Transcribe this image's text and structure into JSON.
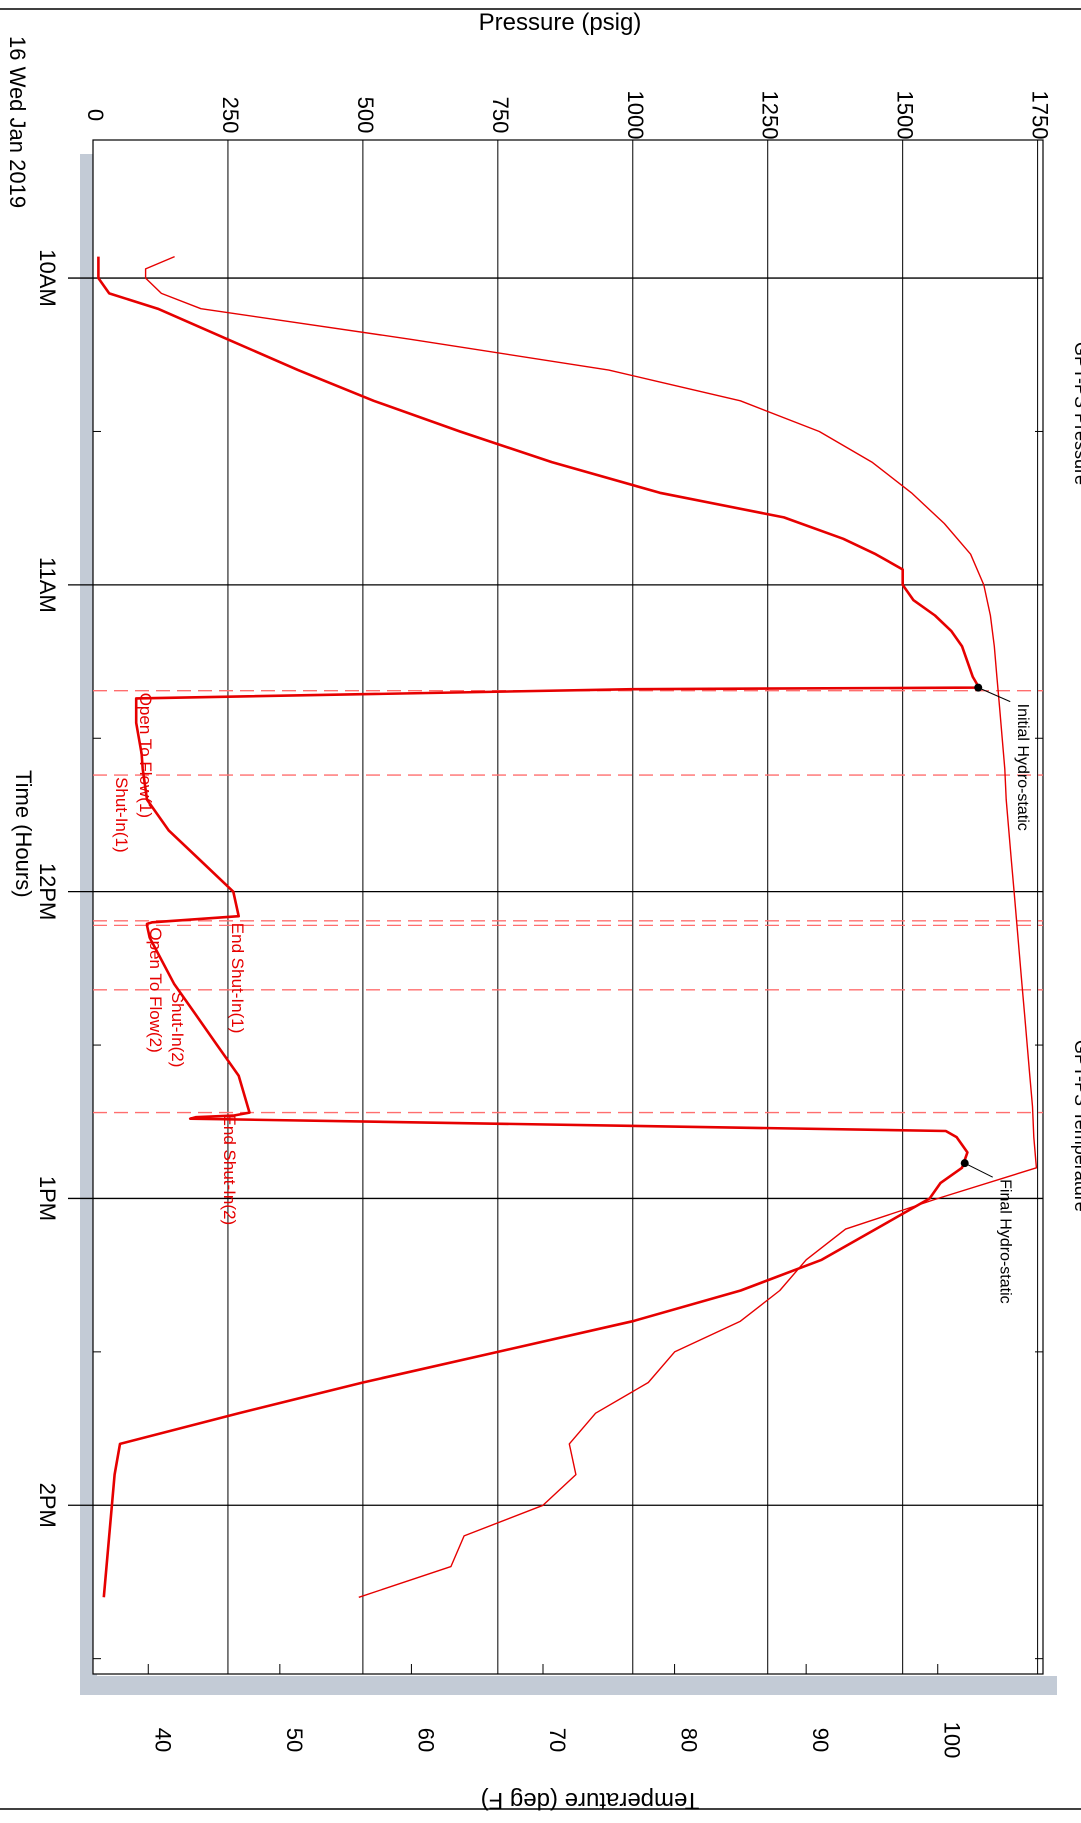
{
  "chart_data": {
    "type": "line",
    "orientation": "rotated-90-clockwise",
    "date_label": "16 Wed Jan 2019",
    "xlabel": "Time (Hours)",
    "ylabel_left": "Pressure (psig)",
    "ylabel_right": "Temperature (deg F)",
    "x_ticks": [
      "10AM",
      "11AM",
      "12PM",
      "1PM",
      "2PM"
    ],
    "x_tick_hours": [
      10,
      11,
      12,
      13,
      14
    ],
    "xlim_hours": [
      9.55,
      14.55
    ],
    "pressure_ticks": [
      "0",
      "250",
      "500",
      "750",
      "1000",
      "1250",
      "1500",
      "1750"
    ],
    "pressure_tick_values": [
      0,
      250,
      500,
      750,
      1000,
      1250,
      1500,
      1750
    ],
    "pressure_lim": [
      0,
      1760
    ],
    "temperature_ticks": [
      "40",
      "50",
      "60",
      "70",
      "80",
      "90",
      "100"
    ],
    "temperature_tick_values": [
      40,
      50,
      60,
      70,
      80,
      90,
      100
    ],
    "temperature_lim": [
      35.8,
      108
    ],
    "grid": true,
    "legend": {
      "placement": "top-right",
      "entries": [
        {
          "label": "GPT-PS Pressure",
          "color": "#e60000"
        },
        {
          "label": "GPT-PS Temperature",
          "color": "#e60000"
        }
      ]
    },
    "colors": {
      "series": "#e60000",
      "event_line": "#ff6e6e",
      "band": "#c3cbd6",
      "grid": "#000000"
    },
    "series": [
      {
        "name": "GPT-PS Pressure",
        "axis": "pressure",
        "x": [
          9.93,
          10.0,
          10.05,
          10.1,
          10.2,
          10.3,
          10.4,
          10.5,
          10.6,
          10.7,
          10.78,
          10.85,
          10.9,
          10.95,
          11.0,
          11.05,
          11.1,
          11.15,
          11.2,
          11.25,
          11.3,
          11.33,
          11.335,
          11.34,
          11.37,
          11.4,
          11.45,
          11.5,
          11.55,
          11.6,
          11.7,
          11.8,
          11.9,
          12.0,
          12.08,
          12.1,
          12.105,
          12.11,
          12.15,
          12.2,
          12.3,
          12.4,
          12.5,
          12.6,
          12.72,
          12.73,
          12.735,
          12.74,
          12.78,
          12.8,
          12.85,
          12.9,
          12.95,
          13.0,
          13.05,
          13.1,
          13.2,
          13.3,
          13.4,
          13.5,
          13.6,
          13.7,
          13.8,
          13.9,
          14.0,
          14.1,
          14.2,
          14.3
        ],
        "y": [
          10,
          10,
          30,
          120,
          250,
          380,
          520,
          680,
          850,
          1050,
          1280,
          1390,
          1450,
          1500,
          1500,
          1520,
          1560,
          1590,
          1610,
          1620,
          1630,
          1640,
          1640,
          1000,
          80,
          80,
          80,
          85,
          90,
          92,
          100,
          140,
          200,
          260,
          270,
          110,
          100,
          100,
          105,
          120,
          150,
          190,
          230,
          270,
          290,
          260,
          190,
          180,
          1580,
          1600,
          1620,
          1610,
          1570,
          1550,
          1500,
          1450,
          1350,
          1200,
          1000,
          750,
          500,
          270,
          50,
          40,
          35,
          30,
          25,
          20
        ]
      },
      {
        "name": "GPT-PS Temperature",
        "axis": "temperature",
        "x": [
          9.93,
          9.97,
          10.0,
          10.05,
          10.1,
          10.2,
          10.3,
          10.4,
          10.5,
          10.6,
          10.7,
          10.8,
          10.9,
          11.0,
          11.1,
          11.2,
          11.3,
          11.4,
          11.5,
          11.6,
          11.7,
          11.8,
          11.9,
          12.0,
          12.1,
          12.2,
          12.3,
          12.4,
          12.5,
          12.6,
          12.7,
          12.8,
          12.9,
          13.0,
          13.1,
          13.2,
          13.3,
          13.4,
          13.5,
          13.6,
          13.7,
          13.8,
          13.9,
          14.0,
          14.1,
          14.2,
          14.3
        ],
        "y": [
          42.0,
          39.8,
          39.8,
          41.0,
          44.0,
          60.0,
          75.0,
          85.0,
          91.0,
          95.0,
          98.0,
          100.5,
          102.5,
          103.5,
          104.0,
          104.3,
          104.5,
          104.7,
          104.9,
          105.1,
          105.2,
          105.4,
          105.6,
          105.8,
          106.0,
          106.2,
          106.4,
          106.6,
          106.8,
          107.0,
          107.2,
          107.3,
          107.5,
          100.0,
          93.0,
          90.0,
          88.0,
          85.0,
          80.0,
          78.0,
          74.0,
          72.0,
          72.5,
          70.0,
          64.0,
          63.0,
          56.0
        ]
      }
    ],
    "events": [
      {
        "label": "Open To Flow(1)",
        "hour": 11.345
      },
      {
        "label": "Shut-In(1)",
        "hour": 11.62
      },
      {
        "label": "End Shut-In(1)",
        "hour": 12.095
      },
      {
        "label": "Open To Flow(2)",
        "hour": 12.11
      },
      {
        "label": "Shut-In(2)",
        "hour": 12.32
      },
      {
        "label": "End Shut-In(2)",
        "hour": 12.72
      }
    ],
    "annotations": [
      {
        "label": "Initial Hydro-static",
        "hour": 11.335,
        "pressure": 1640
      },
      {
        "label": "Final Hydro-static",
        "hour": 12.885,
        "pressure": 1615
      }
    ]
  }
}
